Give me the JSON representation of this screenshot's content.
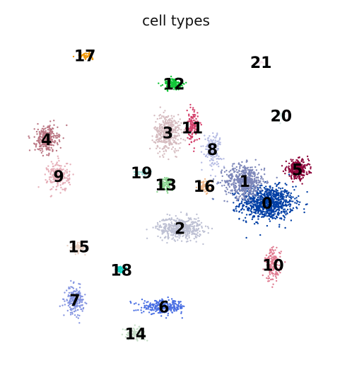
{
  "chart_data": {
    "type": "scatter",
    "title": "cell types",
    "xlabel": "",
    "ylabel": "",
    "axes_visible": false,
    "grid": false,
    "legend": "on-data",
    "clusters": [
      {
        "label": "0",
        "color": "#023fa5",
        "center": [
          8.5,
          5.0
        ],
        "spread": [
          1.2,
          0.9
        ],
        "n": 900
      },
      {
        "label": "1",
        "color": "#7d87b9",
        "center": [
          7.4,
          6.3
        ],
        "spread": [
          0.9,
          0.9
        ],
        "n": 500
      },
      {
        "label": "2",
        "color": "#bec1d4",
        "center": [
          4.2,
          3.5
        ],
        "spread": [
          1.0,
          0.6
        ],
        "n": 450
      },
      {
        "label": "3",
        "color": "#d6bcc0",
        "center": [
          3.6,
          9.2
        ],
        "spread": [
          0.6,
          1.0
        ],
        "n": 400
      },
      {
        "label": "4",
        "color": "#bb7784",
        "center": [
          -2.4,
          8.8
        ],
        "spread": [
          0.5,
          0.7
        ],
        "n": 300
      },
      {
        "label": "5",
        "color": "#8e063b",
        "center": [
          10.0,
          7.0
        ],
        "spread": [
          0.5,
          0.5
        ],
        "n": 300
      },
      {
        "label": "6",
        "color": "#4a6fe3",
        "center": [
          3.4,
          -1.2
        ],
        "spread": [
          1.0,
          0.35
        ],
        "n": 280
      },
      {
        "label": "7",
        "color": "#8595e1",
        "center": [
          -1.0,
          -0.8
        ],
        "spread": [
          0.4,
          0.7
        ],
        "n": 200
      },
      {
        "label": "8",
        "color": "#b5bbe3",
        "center": [
          5.8,
          8.2
        ],
        "spread": [
          0.4,
          0.9
        ],
        "n": 150
      },
      {
        "label": "9",
        "color": "#e6afb9",
        "center": [
          -1.8,
          6.6
        ],
        "spread": [
          0.5,
          0.8
        ],
        "n": 200
      },
      {
        "label": "10",
        "color": "#e07b91",
        "center": [
          8.8,
          1.3
        ],
        "spread": [
          0.35,
          0.9
        ],
        "n": 160
      },
      {
        "label": "11",
        "color": "#d33f6a",
        "center": [
          4.8,
          9.5
        ],
        "spread": [
          0.25,
          0.9
        ],
        "n": 120
      },
      {
        "label": "12",
        "color": "#11c638",
        "center": [
          3.9,
          12.1
        ],
        "spread": [
          0.45,
          0.3
        ],
        "n": 150
      },
      {
        "label": "13",
        "color": "#8dd593",
        "center": [
          3.5,
          6.1
        ],
        "spread": [
          0.3,
          0.4
        ],
        "n": 90
      },
      {
        "label": "14",
        "color": "#c6dec7",
        "center": [
          2.0,
          -2.8
        ],
        "spread": [
          0.45,
          0.3
        ],
        "n": 100
      },
      {
        "label": "15",
        "color": "#ead3c6",
        "center": [
          -0.8,
          2.4
        ],
        "spread": [
          0.35,
          0.3
        ],
        "n": 70
      },
      {
        "label": "16",
        "color": "#f0b98d",
        "center": [
          5.4,
          6.0
        ],
        "spread": [
          0.3,
          0.3
        ],
        "n": 60
      },
      {
        "label": "17",
        "color": "#ef9708",
        "center": [
          -0.5,
          13.8
        ],
        "spread": [
          0.35,
          0.15
        ],
        "n": 50
      },
      {
        "label": "18",
        "color": "#0fcfc0",
        "center": [
          1.3,
          1.0
        ],
        "spread": [
          0.2,
          0.2
        ],
        "n": 45
      },
      {
        "label": "19",
        "color": "#9cded6",
        "center": [
          2.3,
          6.8
        ],
        "spread": [
          0.4,
          0.15
        ],
        "n": 30
      },
      {
        "label": "20",
        "color": "#d5eae7",
        "center": [
          9.2,
          10.2
        ],
        "spread": [
          0.2,
          0.3
        ],
        "n": 20
      },
      {
        "label": "21",
        "color": "#f3e1eb",
        "center": [
          8.2,
          13.4
        ],
        "spread": [
          0.1,
          0.1
        ],
        "n": 8
      }
    ],
    "xlim": [
      -4,
      12
    ],
    "ylim": [
      -4,
      15
    ]
  }
}
